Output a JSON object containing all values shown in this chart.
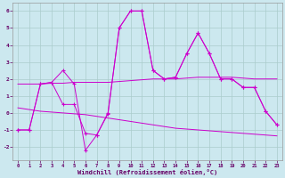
{
  "x": [
    0,
    1,
    2,
    3,
    4,
    5,
    6,
    7,
    8,
    9,
    10,
    11,
    12,
    13,
    14,
    15,
    16,
    17,
    18,
    19,
    20,
    21,
    22,
    23
  ],
  "line1": [
    -1,
    -1,
    1.7,
    1.8,
    2.5,
    1.7,
    -2.2,
    -1.3,
    0.0,
    5.0,
    6.0,
    6.0,
    2.5,
    2.0,
    2.1,
    3.5,
    4.7,
    3.5,
    2.0,
    2.0,
    1.5,
    1.5,
    0.1,
    -0.7
  ],
  "line2": [
    -1,
    -1,
    1.7,
    1.8,
    0.5,
    0.5,
    -1.2,
    -1.3,
    -0.05,
    5.0,
    6.0,
    6.0,
    2.5,
    2.0,
    2.1,
    3.5,
    4.7,
    3.5,
    2.0,
    2.0,
    1.5,
    1.5,
    0.1,
    -0.7
  ],
  "line3": [
    1.7,
    1.7,
    1.7,
    1.75,
    1.75,
    1.8,
    1.8,
    1.8,
    1.8,
    1.85,
    1.9,
    1.95,
    2.0,
    2.0,
    2.0,
    2.05,
    2.1,
    2.1,
    2.1,
    2.1,
    2.05,
    2.0,
    2.0,
    2.0
  ],
  "line4": [
    0.3,
    0.2,
    0.1,
    0.05,
    0.0,
    -0.05,
    -0.1,
    -0.2,
    -0.3,
    -0.4,
    -0.5,
    -0.6,
    -0.7,
    -0.8,
    -0.9,
    -0.95,
    -1.0,
    -1.05,
    -1.1,
    -1.15,
    -1.2,
    -1.25,
    -1.3,
    -1.35
  ],
  "bg_color": "#cce8ef",
  "grid_color": "#aacccc",
  "line_color": "#cc00cc",
  "xlabel": "Windchill (Refroidissement éolien,°C)",
  "tick_color": "#660066",
  "ylim": [
    -2.8,
    6.5
  ],
  "xlim": [
    -0.5,
    23.5
  ],
  "yticks": [
    -2,
    -1,
    0,
    1,
    2,
    3,
    4,
    5,
    6
  ],
  "xticks": [
    0,
    1,
    2,
    3,
    4,
    5,
    6,
    7,
    8,
    9,
    10,
    11,
    12,
    13,
    14,
    15,
    16,
    17,
    18,
    19,
    20,
    21,
    22,
    23
  ]
}
